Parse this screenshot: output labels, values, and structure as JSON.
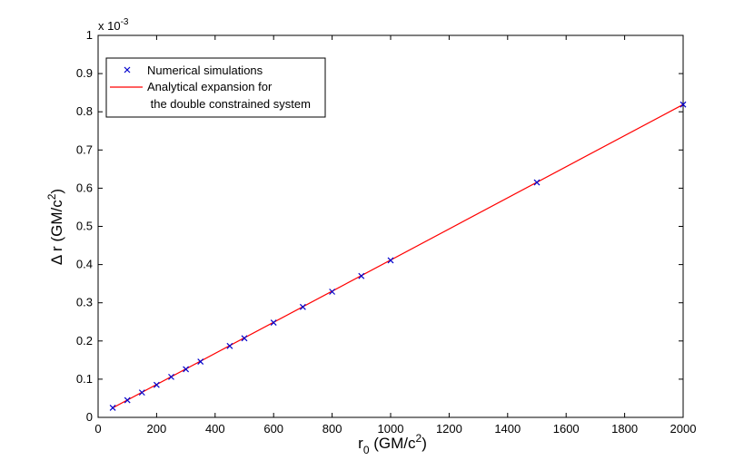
{
  "chart_data": {
    "type": "line",
    "x_axis": {
      "label_main": "r",
      "label_sub": "0",
      "label_unit_prefix": " (GM/c",
      "label_unit_sup": "2",
      "label_unit_suffix": ")",
      "min": 0,
      "max": 2000,
      "ticks": [
        0,
        200,
        400,
        600,
        800,
        1000,
        1200,
        1400,
        1600,
        1800,
        2000
      ]
    },
    "y_axis": {
      "label_main": "Δ r (GM/c",
      "label_sup": "2",
      "label_suffix": ")",
      "min": 0,
      "max": 1,
      "ticks": [
        0,
        0.1,
        0.2,
        0.3,
        0.4,
        0.5,
        0.6,
        0.7,
        0.8,
        0.9,
        1
      ],
      "multiplier_base": "x 10",
      "multiplier_exp": "-3"
    },
    "grid": false,
    "legend_position": "top-left",
    "series": [
      {
        "name": "Numerical simulations",
        "kind": "marker",
        "marker": "x",
        "color": "#0000cc",
        "x": [
          50,
          100,
          150,
          200,
          250,
          300,
          350,
          450,
          500,
          600,
          700,
          800,
          900,
          1000,
          1500,
          2000
        ],
        "y": [
          0.025,
          0.045,
          0.065,
          0.085,
          0.106,
          0.126,
          0.146,
          0.187,
          0.207,
          0.248,
          0.289,
          0.329,
          0.37,
          0.411,
          0.615,
          0.819
        ]
      },
      {
        "name_lines": [
          "Analytical expansion for",
          " the double constrained system"
        ],
        "kind": "line",
        "color": "#ff0000",
        "x": [
          50,
          2000
        ],
        "y": [
          0.025,
          0.819
        ]
      }
    ]
  }
}
